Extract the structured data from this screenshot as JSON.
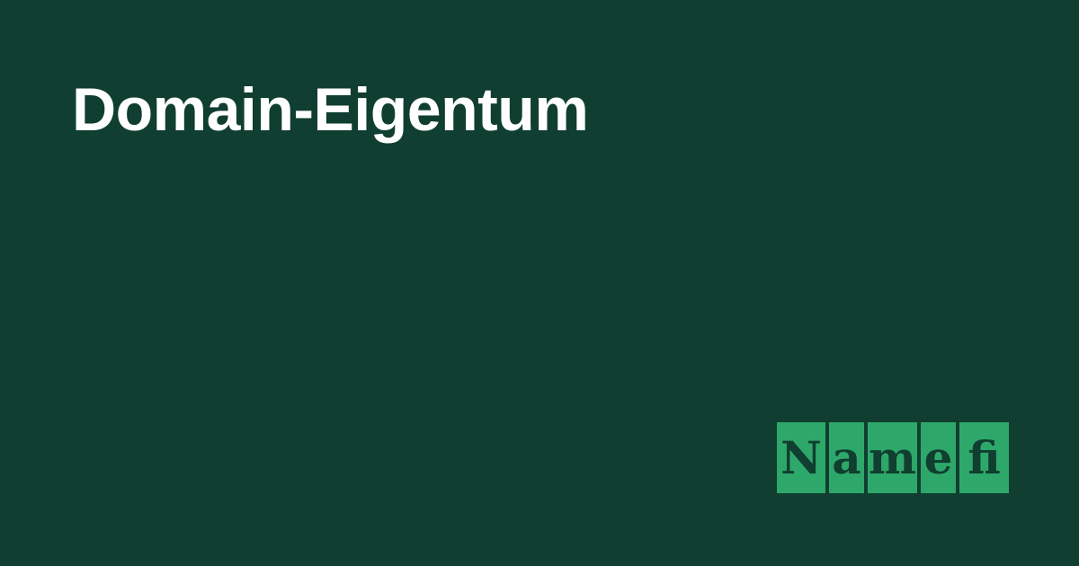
{
  "page": {
    "title": "Domain-Eigentum",
    "background_color": "#103e30",
    "title_color": "#ffffff"
  },
  "logo": {
    "name": "Namefi",
    "tile_color": "#2ea86a",
    "text_color": "#103e30",
    "tiles": [
      "N",
      "a",
      "m",
      "e",
      "fi"
    ]
  }
}
